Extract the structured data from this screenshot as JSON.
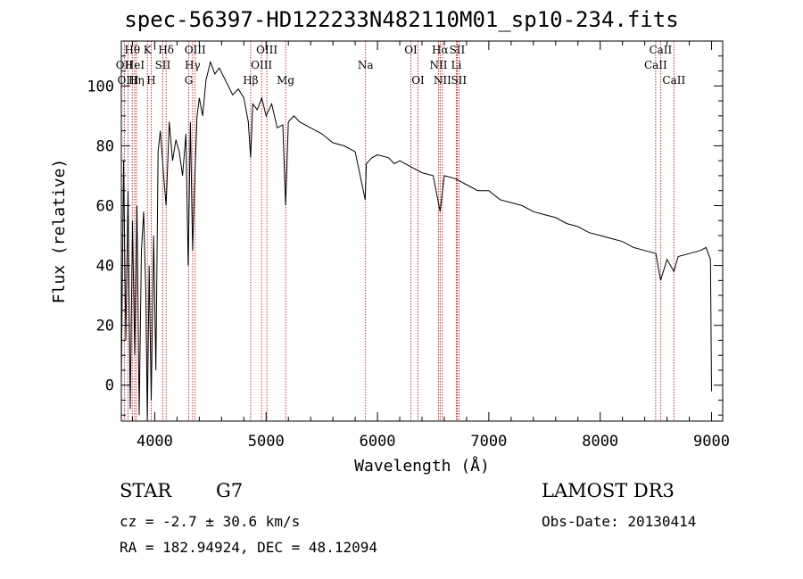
{
  "title": "spec-56397-HD122233N482110M01_sp10-234.fits",
  "info": {
    "object_class": "STAR",
    "subclass": "G7",
    "survey": "LAMOST DR3",
    "redshift": "cz = -2.7 ± 30.6 km/s",
    "obs_date": "Obs-Date: 20130414",
    "coords": "RA = 182.94924, DEC =  48.12094"
  },
  "chart_data": {
    "type": "line",
    "title": "spec-56397-HD122233N482110M01_sp10-234.fits",
    "xlabel": "Wavelength (Å)",
    "ylabel": "Flux (relative)",
    "xlim": [
      3700,
      9100
    ],
    "ylim": [
      -12,
      115
    ],
    "xticks": [
      4000,
      5000,
      6000,
      7000,
      8000,
      9000
    ],
    "yticks": [
      0,
      20,
      40,
      60,
      80,
      100
    ],
    "grid": false,
    "series": [
      {
        "name": "flux",
        "x": [
          3700,
          3720,
          3740,
          3760,
          3780,
          3800,
          3820,
          3840,
          3860,
          3880,
          3900,
          3920,
          3933,
          3950,
          3968,
          3990,
          4010,
          4030,
          4050,
          4080,
          4102,
          4130,
          4160,
          4190,
          4220,
          4250,
          4280,
          4300,
          4320,
          4340,
          4360,
          4380,
          4400,
          4430,
          4460,
          4500,
          4540,
          4580,
          4620,
          4660,
          4700,
          4750,
          4800,
          4840,
          4861,
          4880,
          4920,
          4960,
          5000,
          5050,
          5100,
          5150,
          5175,
          5200,
          5250,
          5300,
          5400,
          5500,
          5600,
          5700,
          5800,
          5890,
          5900,
          5950,
          6000,
          6100,
          6150,
          6200,
          6300,
          6400,
          6500,
          6563,
          6600,
          6700,
          6800,
          6900,
          7000,
          7100,
          7200,
          7300,
          7400,
          7500,
          7600,
          7700,
          7800,
          7900,
          8000,
          8100,
          8200,
          8300,
          8400,
          8500,
          8542,
          8600,
          8662,
          8700,
          8800,
          8900,
          8950,
          8990,
          9000
        ],
        "y": [
          2,
          75,
          15,
          65,
          -8,
          55,
          10,
          60,
          -10,
          45,
          58,
          30,
          -12,
          40,
          -5,
          50,
          5,
          78,
          85,
          70,
          60,
          88,
          75,
          82,
          78,
          70,
          84,
          40,
          88,
          45,
          70,
          90,
          96,
          90,
          102,
          108,
          104,
          106,
          103,
          100,
          97,
          99,
          96,
          88,
          76,
          94,
          92,
          96,
          90,
          94,
          86,
          87,
          60,
          88,
          90,
          88,
          86,
          84,
          81,
          80,
          78,
          62,
          74,
          76,
          77,
          76,
          74,
          75,
          73,
          71,
          70,
          58,
          70,
          69,
          67,
          65,
          65,
          62,
          61,
          60,
          58,
          57,
          56,
          54,
          53,
          51,
          50,
          49,
          48,
          46,
          45,
          44,
          35,
          42,
          38,
          43,
          44,
          45,
          46,
          42,
          -2
        ]
      }
    ],
    "lines": [
      {
        "name": "Hθ",
        "wave": 3798,
        "pos": "top",
        "row": 0
      },
      {
        "name": "OII",
        "wave": 3727,
        "pos": "top",
        "row": 1
      },
      {
        "name": "OIII",
        "wave": 3760,
        "pos": "top",
        "row": 2
      },
      {
        "name": "HeI",
        "wave": 3820,
        "pos": "top",
        "row": 1
      },
      {
        "name": "Hη",
        "wave": 3835,
        "pos": "top",
        "row": 2
      },
      {
        "name": "K",
        "wave": 3934,
        "pos": "top",
        "row": 0
      },
      {
        "name": "SII",
        "wave": 4072,
        "pos": "top",
        "row": 1
      },
      {
        "name": "H",
        "wave": 3968,
        "pos": "top",
        "row": 2
      },
      {
        "name": "Hδ",
        "wave": 4102,
        "pos": "top",
        "row": 0
      },
      {
        "name": "OIII",
        "wave": 4363,
        "pos": "top",
        "row": 0
      },
      {
        "name": "Hγ",
        "wave": 4340,
        "pos": "top",
        "row": 1
      },
      {
        "name": "G",
        "wave": 4305,
        "pos": "top",
        "row": 2
      },
      {
        "name": "OIII",
        "wave": 5007,
        "pos": "top",
        "row": 0
      },
      {
        "name": "OIII",
        "wave": 4959,
        "pos": "top",
        "row": 1
      },
      {
        "name": "Hβ",
        "wave": 4861,
        "pos": "top",
        "row": 2
      },
      {
        "name": "Mg",
        "wave": 5175,
        "pos": "top",
        "row": 2
      },
      {
        "name": "Na",
        "wave": 5893,
        "pos": "top",
        "row": 1
      },
      {
        "name": "OI",
        "wave": 6300,
        "pos": "top",
        "row": 0
      },
      {
        "name": "OI",
        "wave": 6364,
        "pos": "top",
        "row": 2
      },
      {
        "name": "Hα",
        "wave": 6563,
        "pos": "top",
        "row": 0
      },
      {
        "name": "SII",
        "wave": 6716,
        "pos": "top",
        "row": 0
      },
      {
        "name": "NII",
        "wave": 6548,
        "pos": "top",
        "row": 1
      },
      {
        "name": "Li",
        "wave": 6708,
        "pos": "top",
        "row": 1
      },
      {
        "name": "NII",
        "wave": 6583,
        "pos": "top",
        "row": 2
      },
      {
        "name": "SII",
        "wave": 6731,
        "pos": "top",
        "row": 2
      },
      {
        "name": "CaII",
        "wave": 8542,
        "pos": "top",
        "row": 0
      },
      {
        "name": "CaII",
        "wave": 8498,
        "pos": "top",
        "row": 1
      },
      {
        "name": "CaII",
        "wave": 8662,
        "pos": "top",
        "row": 2
      }
    ],
    "line_color": "#c00000",
    "spectrum_color": "#000000"
  }
}
